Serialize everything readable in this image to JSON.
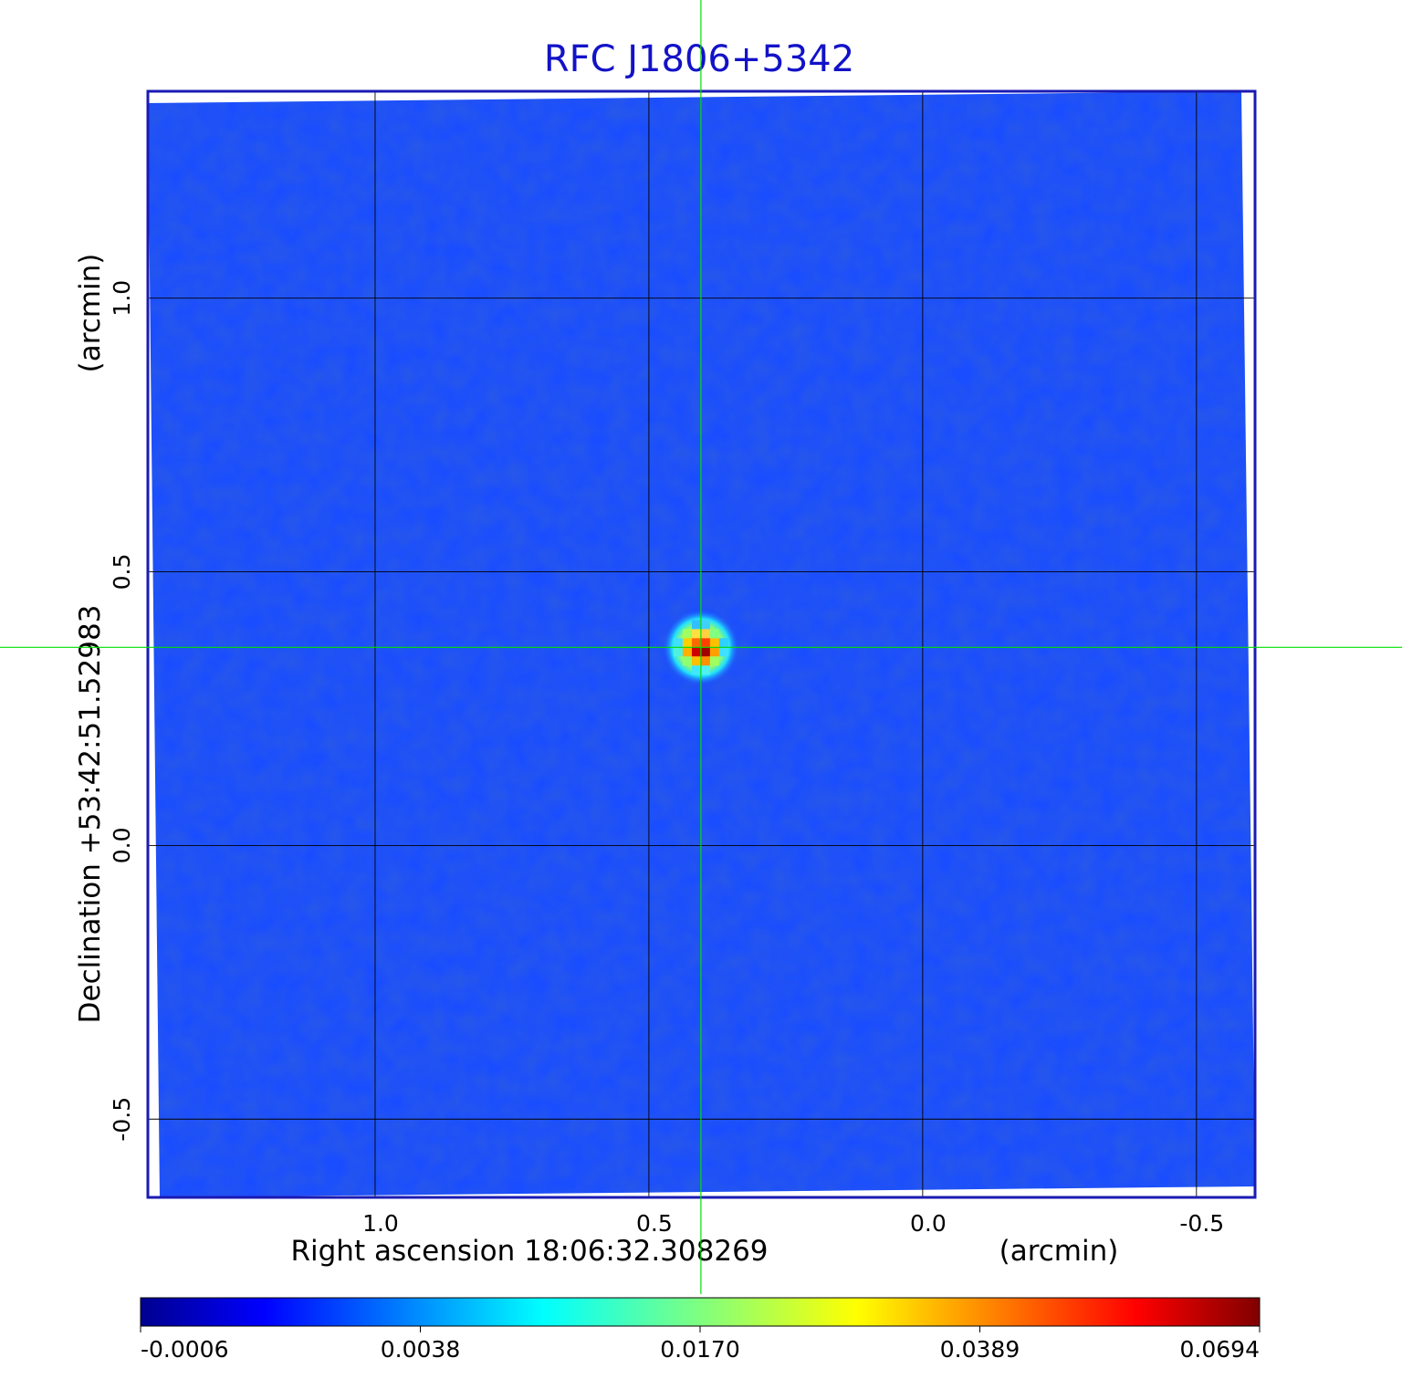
{
  "chart_data": {
    "type": "heatmap",
    "title": "RFC J1806+5342",
    "xlabel": "Right ascension  18:06:32.308269",
    "xunit": "(arcmin)",
    "ylabel": "Declination  +53:42:51.52983",
    "yunit": "(arcmin)",
    "x_ticks": [
      {
        "value": 1.0,
        "label": "1.0"
      },
      {
        "value": 0.5,
        "label": "0.5"
      },
      {
        "value": 0.0,
        "label": "0.0"
      },
      {
        "value": -0.5,
        "label": "-0.5"
      }
    ],
    "y_ticks": [
      {
        "value": 1.0,
        "label": "1.0"
      },
      {
        "value": 0.5,
        "label": "0.5"
      },
      {
        "value": 0.0,
        "label": "0.0"
      },
      {
        "value": -0.5,
        "label": "-0.5"
      }
    ],
    "xlim": [
      1.415,
      -0.607
    ],
    "ylim": [
      -0.643,
      1.378
    ],
    "x_reversed": true,
    "grid": true,
    "crosshair": {
      "x": 0.405,
      "y": 0.362
    },
    "source_peak": {
      "x": 0.405,
      "y": 0.362,
      "value": 0.0694
    },
    "background_level": 0.0006,
    "colormap": "jet",
    "colorbar": {
      "ticks": [
        "-0.0006",
        "0.0038",
        "0.0170",
        "0.0389",
        "0.0694"
      ],
      "min": -0.0006,
      "max": 0.0694
    },
    "colors": {
      "title": "#1212c8",
      "frame": "#1a1ab4",
      "grid": "#000000",
      "crosshair": "#00e000",
      "background_map": "#1a4dff"
    }
  }
}
